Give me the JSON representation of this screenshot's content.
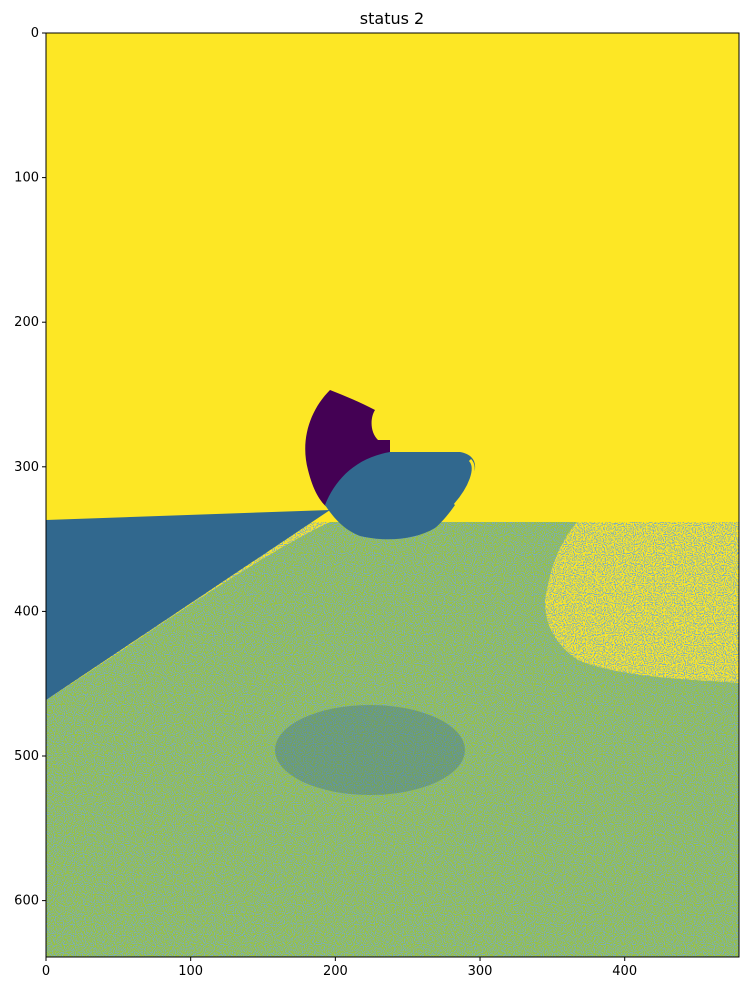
{
  "chart_data": {
    "type": "heatmap",
    "title": "status 2",
    "xlabel": "",
    "ylabel": "",
    "xlim": [
      0,
      479
    ],
    "ylim": [
      639,
      0
    ],
    "x_ticks": [
      0,
      100,
      200,
      300,
      400
    ],
    "y_ticks": [
      0,
      100,
      200,
      300,
      400,
      500,
      600
    ],
    "colormap": "viridis",
    "grid": false,
    "legend": "none",
    "colors": {
      "high": "#fde725",
      "mid": "#31688e",
      "low": "#440154",
      "noise_mix": "#98c144"
    },
    "regions": [
      {
        "name": "upper-field",
        "value_level": "high"
      },
      {
        "name": "left-wedge",
        "value_level": "mid",
        "polygon": [
          [
            0,
            335
          ],
          [
            193,
            328
          ],
          [
            0,
            458
          ]
        ]
      },
      {
        "name": "lens-shape",
        "value_level": "mid"
      },
      {
        "name": "dark-crescent",
        "value_level": "low"
      },
      {
        "name": "noisy-lower-field",
        "value_level": "mixed"
      },
      {
        "name": "right-bay",
        "value_level": "high"
      }
    ]
  }
}
